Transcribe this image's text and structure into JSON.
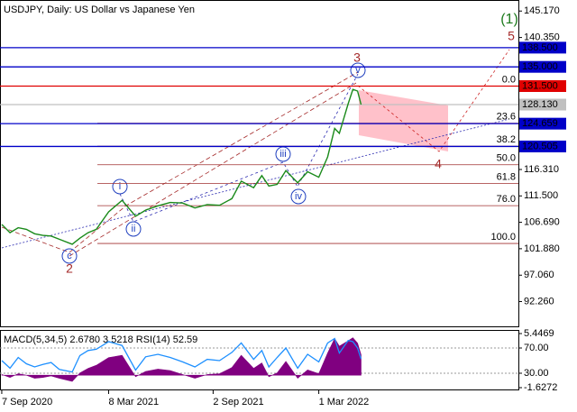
{
  "chart_data": [
    {
      "type": "line",
      "title": "USDJPY, Daily:  US Dollar vs Japanese Yen",
      "x": [
        "2020-09-07",
        "2020-09-21",
        "2020-10-05",
        "2020-10-19",
        "2020-11-02",
        "2020-11-16",
        "2020-11-30",
        "2020-12-14",
        "2021-01-05",
        "2021-01-18",
        "2021-02-01",
        "2021-02-15",
        "2021-03-08",
        "2021-03-31",
        "2021-04-23",
        "2021-05-10",
        "2021-05-31",
        "2021-06-21",
        "2021-07-12",
        "2021-08-02",
        "2021-08-23",
        "2021-09-13",
        "2021-10-04",
        "2021-10-20",
        "2021-11-10",
        "2021-11-24",
        "2021-12-06",
        "2021-12-20",
        "2022-01-04",
        "2022-01-24",
        "2022-02-10",
        "2022-03-01",
        "2022-03-16",
        "2022-03-28",
        "2022-04-05",
        "2022-04-20",
        "2022-04-28",
        "2022-05-06",
        "2022-05-12"
      ],
      "values": [
        106.3,
        104.8,
        105.7,
        105.4,
        104.6,
        104.3,
        104.2,
        103.6,
        102.7,
        103.8,
        104.8,
        105.4,
        108.6,
        110.7,
        107.8,
        108.9,
        109.7,
        110.3,
        110.2,
        109.3,
        109.9,
        109.8,
        111.0,
        114.2,
        113.0,
        115.2,
        113.3,
        113.6,
        116.1,
        113.9,
        115.9,
        114.9,
        118.6,
        123.8,
        122.9,
        128.3,
        130.9,
        130.6,
        128.13
      ],
      "color": "#1a8a1a",
      "xlim": [
        "2020-09-04",
        "2023-02-04"
      ],
      "xticks": [
        {
          "value": "2020-09-07",
          "label": "7 Sep 2020"
        },
        {
          "value": "2021-03-08",
          "label": "8 Mar 2021"
        },
        {
          "value": "2021-09-02",
          "label": "2 Sep 2021"
        },
        {
          "value": "2022-03-01",
          "label": "1 Mar 2022"
        }
      ],
      "ylim": [
        87.74,
        147.18
      ],
      "yticks": [
        {
          "value": 145.17,
          "label": "145.170"
        },
        {
          "value": 140.35,
          "label": "140.350"
        },
        {
          "value": 116.31,
          "label": "116.310"
        },
        {
          "value": 111.5,
          "label": "111.500"
        },
        {
          "value": 106.69,
          "label": "106.690"
        },
        {
          "value": 101.88,
          "label": "101.880"
        },
        {
          "value": 97.06,
          "label": "97.060"
        },
        {
          "value": 92.26,
          "label": "92.260"
        }
      ],
      "levels": [
        {
          "value": 138.5,
          "label": "138.500",
          "color": "#0000c8"
        },
        {
          "value": 135.0,
          "label": "135.000",
          "color": "#0000c8"
        },
        {
          "value": 131.5,
          "label": "131.500",
          "color": "#e00000"
        },
        {
          "value": 128.13,
          "label": "128.130",
          "color": "#c0c0c0"
        },
        {
          "value": 124.659,
          "label": "124.659",
          "color": "#0000c8"
        },
        {
          "value": 120.505,
          "label": "120.505",
          "color": "#0000c8"
        }
      ],
      "fib_levels": [
        {
          "label": "0.0",
          "price": 131.5
        },
        {
          "label": "23.6",
          "price": 124.74
        },
        {
          "label": "38.2",
          "price": 120.55
        },
        {
          "label": "50.0",
          "price": 117.17
        },
        {
          "label": "61.8",
          "price": 113.79
        },
        {
          "label": "76.0",
          "price": 109.72
        },
        {
          "label": "100.0",
          "price": 102.84
        }
      ],
      "fib_color": "#a03030",
      "annotations": [
        "(1)",
        "5",
        "3",
        "v",
        "i",
        "ii",
        "iii",
        "iv",
        "c",
        "2",
        "4"
      ]
    },
    {
      "type": "indicator",
      "title": "MACD(5,34,5) 2.6780 3.5218 RSI(14) 52.59",
      "x": [
        "2020-09-07",
        "2020-09-21",
        "2020-10-05",
        "2020-10-19",
        "2020-11-02",
        "2020-11-16",
        "2020-11-30",
        "2020-12-14",
        "2021-01-05",
        "2021-01-18",
        "2021-02-01",
        "2021-02-15",
        "2021-03-08",
        "2021-03-31",
        "2021-04-23",
        "2021-05-10",
        "2021-05-31",
        "2021-06-21",
        "2021-07-12",
        "2021-08-02",
        "2021-08-23",
        "2021-09-13",
        "2021-10-04",
        "2021-10-20",
        "2021-11-10",
        "2021-11-24",
        "2021-12-06",
        "2021-12-20",
        "2022-01-04",
        "2022-01-24",
        "2022-02-10",
        "2022-03-01",
        "2022-03-16",
        "2022-03-28",
        "2022-04-05",
        "2022-04-20",
        "2022-04-28",
        "2022-05-06",
        "2022-05-12"
      ],
      "series": [
        {
          "type": "area",
          "color": "#800080",
          "values": [
            0.1,
            -0.3,
            0.2,
            0.0,
            -0.4,
            -0.3,
            -0.1,
            -0.4,
            -0.8,
            0.3,
            0.9,
            1.3,
            2.3,
            2.6,
            -0.2,
            0.5,
            0.8,
            0.6,
            0.1,
            -0.4,
            0.1,
            0.2,
            1.0,
            2.6,
            0.9,
            1.6,
            -0.2,
            0.3,
            1.8,
            -0.4,
            0.7,
            0.2,
            2.9,
            4.8,
            3.8,
            4.5,
            4.9,
            4.2,
            2.678
          ]
        },
        {
          "type": "line",
          "axis": "y2",
          "color": "#1e90ff",
          "values": [
            50,
            38,
            55,
            45,
            40,
            44,
            47,
            36,
            32,
            58,
            66,
            68,
            80,
            74,
            35,
            56,
            60,
            55,
            48,
            40,
            52,
            50,
            63,
            78,
            52,
            66,
            40,
            55,
            70,
            38,
            60,
            48,
            78,
            85,
            62,
            82,
            80,
            70,
            52.59
          ]
        }
      ],
      "ylim": [
        -1.6272,
        5.4469
      ],
      "yticks": [
        5.4469,
        -1.6272
      ],
      "y2lim": [
        7.1,
        92.9
      ],
      "y2ticks": [
        {
          "value": 70,
          "label": "70.00"
        },
        {
          "value": 30,
          "label": "30.00"
        }
      ]
    }
  ]
}
